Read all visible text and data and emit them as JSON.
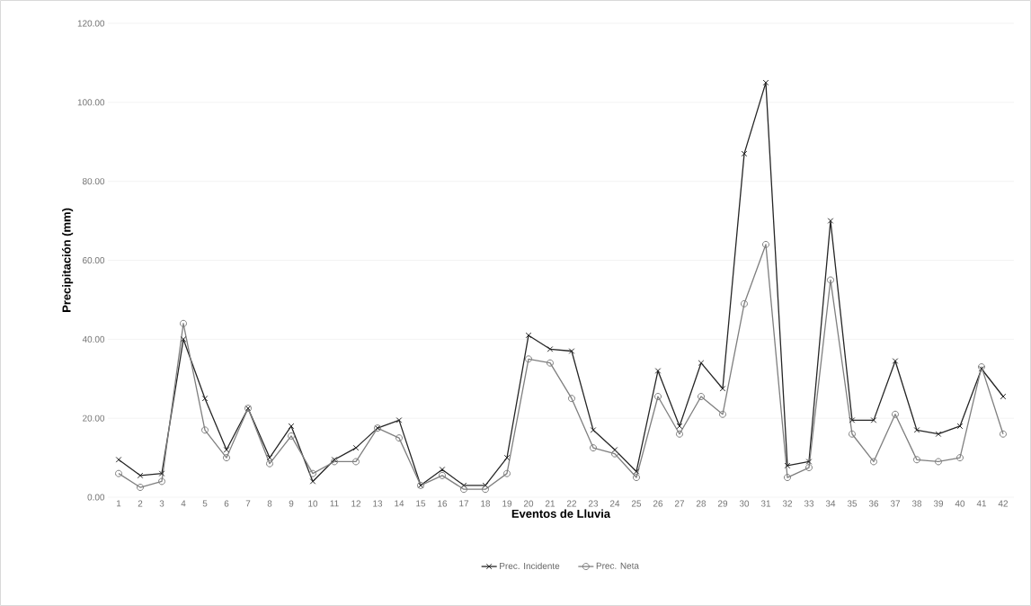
{
  "chart_data": {
    "type": "line",
    "xlabel": "Eventos de Lluvia",
    "ylabel": "Precipitación (mm)",
    "categories": [
      "1",
      "2",
      "3",
      "4",
      "5",
      "6",
      "7",
      "8",
      "9",
      "10",
      "11",
      "12",
      "13",
      "14",
      "15",
      "16",
      "17",
      "18",
      "19",
      "20",
      "21",
      "22",
      "23",
      "24",
      "25",
      "26",
      "27",
      "28",
      "29",
      "30",
      "31",
      "32",
      "33",
      "34",
      "35",
      "36",
      "37",
      "38",
      "39",
      "40",
      "41",
      "42"
    ],
    "series": [
      {
        "name": "Prec. Incidente",
        "color": "#262626",
        "marker": "cross",
        "values": [
          9.5,
          5.5,
          6,
          40,
          25,
          12,
          22.5,
          10,
          18,
          4,
          9.5,
          12.5,
          17.5,
          19.5,
          3,
          7,
          3,
          3,
          10,
          41,
          37.5,
          37,
          17,
          12,
          6.5,
          32,
          18,
          34,
          27.5,
          87,
          105,
          8,
          9,
          70,
          19.5,
          19.5,
          34.5,
          17,
          16,
          18,
          32.5,
          25.5
        ]
      },
      {
        "name": "Prec. Neta",
        "color": "#7f7f7f",
        "marker": "circle",
        "values": [
          6,
          2.5,
          4,
          44,
          17,
          10,
          22.5,
          8.5,
          15.5,
          6,
          9,
          9,
          17.5,
          15,
          3,
          5.5,
          2,
          2,
          6,
          35,
          34,
          25,
          12.5,
          11,
          5,
          25.5,
          16,
          25.5,
          21,
          49,
          64,
          5,
          7.5,
          55,
          16,
          9,
          21,
          9.5,
          9,
          10,
          33,
          16
        ]
      }
    ],
    "ylim": [
      0,
      120
    ],
    "yticks": [
      {
        "value": 0,
        "label": "0.00"
      },
      {
        "value": 20,
        "label": "20.00"
      },
      {
        "value": 40,
        "label": "40.00"
      },
      {
        "value": 60,
        "label": "60.00"
      },
      {
        "value": 80,
        "label": "80.00"
      },
      {
        "value": 100,
        "label": "100.00"
      },
      {
        "value": 120,
        "label": "120.00"
      }
    ],
    "grid": "y",
    "legend": "bottom",
    "line_style": "solid"
  }
}
